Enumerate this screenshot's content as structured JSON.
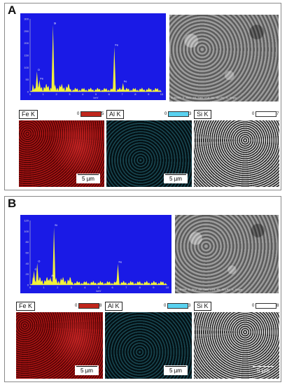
{
  "panels": [
    {
      "label": "A",
      "eds": {
        "yticks": [
          "300",
          "250",
          "200",
          "150",
          "100",
          "50",
          "0"
        ],
        "xticks": [
          "0",
          "1",
          "2",
          "3",
          "4",
          "5",
          "6",
          "7",
          "8",
          "9",
          "10"
        ],
        "xunit": "keV",
        "peaks": [
          {
            "el": "O",
            "kev": 0.52,
            "h": 0.28
          },
          {
            "el": "Fe",
            "kev": 0.71,
            "h": 0.16
          },
          {
            "el": "Si",
            "kev": 1.74,
            "h": 0.92
          },
          {
            "el": "Fe",
            "kev": 6.4,
            "h": 0.62
          },
          {
            "el": "Fe",
            "kev": 7.06,
            "h": 0.12
          }
        ]
      },
      "sem_caption": "SU6600 5.0kV 10.1mm x10.0k SE(M) 5.00µm",
      "maps": [
        {
          "el": "Fe K",
          "lo": "0",
          "hi": "5",
          "color": "#c0261c"
        },
        {
          "el": "Al K",
          "lo": "0",
          "hi": "3",
          "color": "#5ad2f0"
        },
        {
          "el": "Si K",
          "lo": "0",
          "hi": "7",
          "color": "#ffffff"
        }
      ],
      "scale": "5 µm"
    },
    {
      "label": "B",
      "eds": {
        "yticks": [
          "120",
          "100",
          "80",
          "60",
          "40",
          "20",
          "0"
        ],
        "xticks": [
          "0",
          "1",
          "2",
          "3",
          "4",
          "5",
          "6",
          "7",
          "8",
          "9",
          "10"
        ],
        "xunit": "keV",
        "peaks": [
          {
            "el": "C",
            "kev": 0.28,
            "h": 0.22
          },
          {
            "el": "O",
            "kev": 0.52,
            "h": 0.34
          },
          {
            "el": "Si",
            "kev": 1.74,
            "h": 0.9
          },
          {
            "el": "Al",
            "kev": 1.49,
            "h": 0.12
          },
          {
            "el": "Fe",
            "kev": 6.4,
            "h": 0.33
          }
        ]
      },
      "sem_caption": "SU6600 5.0kV 10.1mm x10.0k SE(M) 5.00µm",
      "maps": [
        {
          "el": "Fe K",
          "lo": "0",
          "hi": "8",
          "color": "#c0261c"
        },
        {
          "el": "Al K",
          "lo": "0",
          "hi": "3",
          "color": "#5ad2f0"
        },
        {
          "el": "Si K",
          "lo": "0",
          "hi": "8",
          "color": "#ffffff"
        }
      ],
      "scale": "5 µm"
    }
  ]
}
